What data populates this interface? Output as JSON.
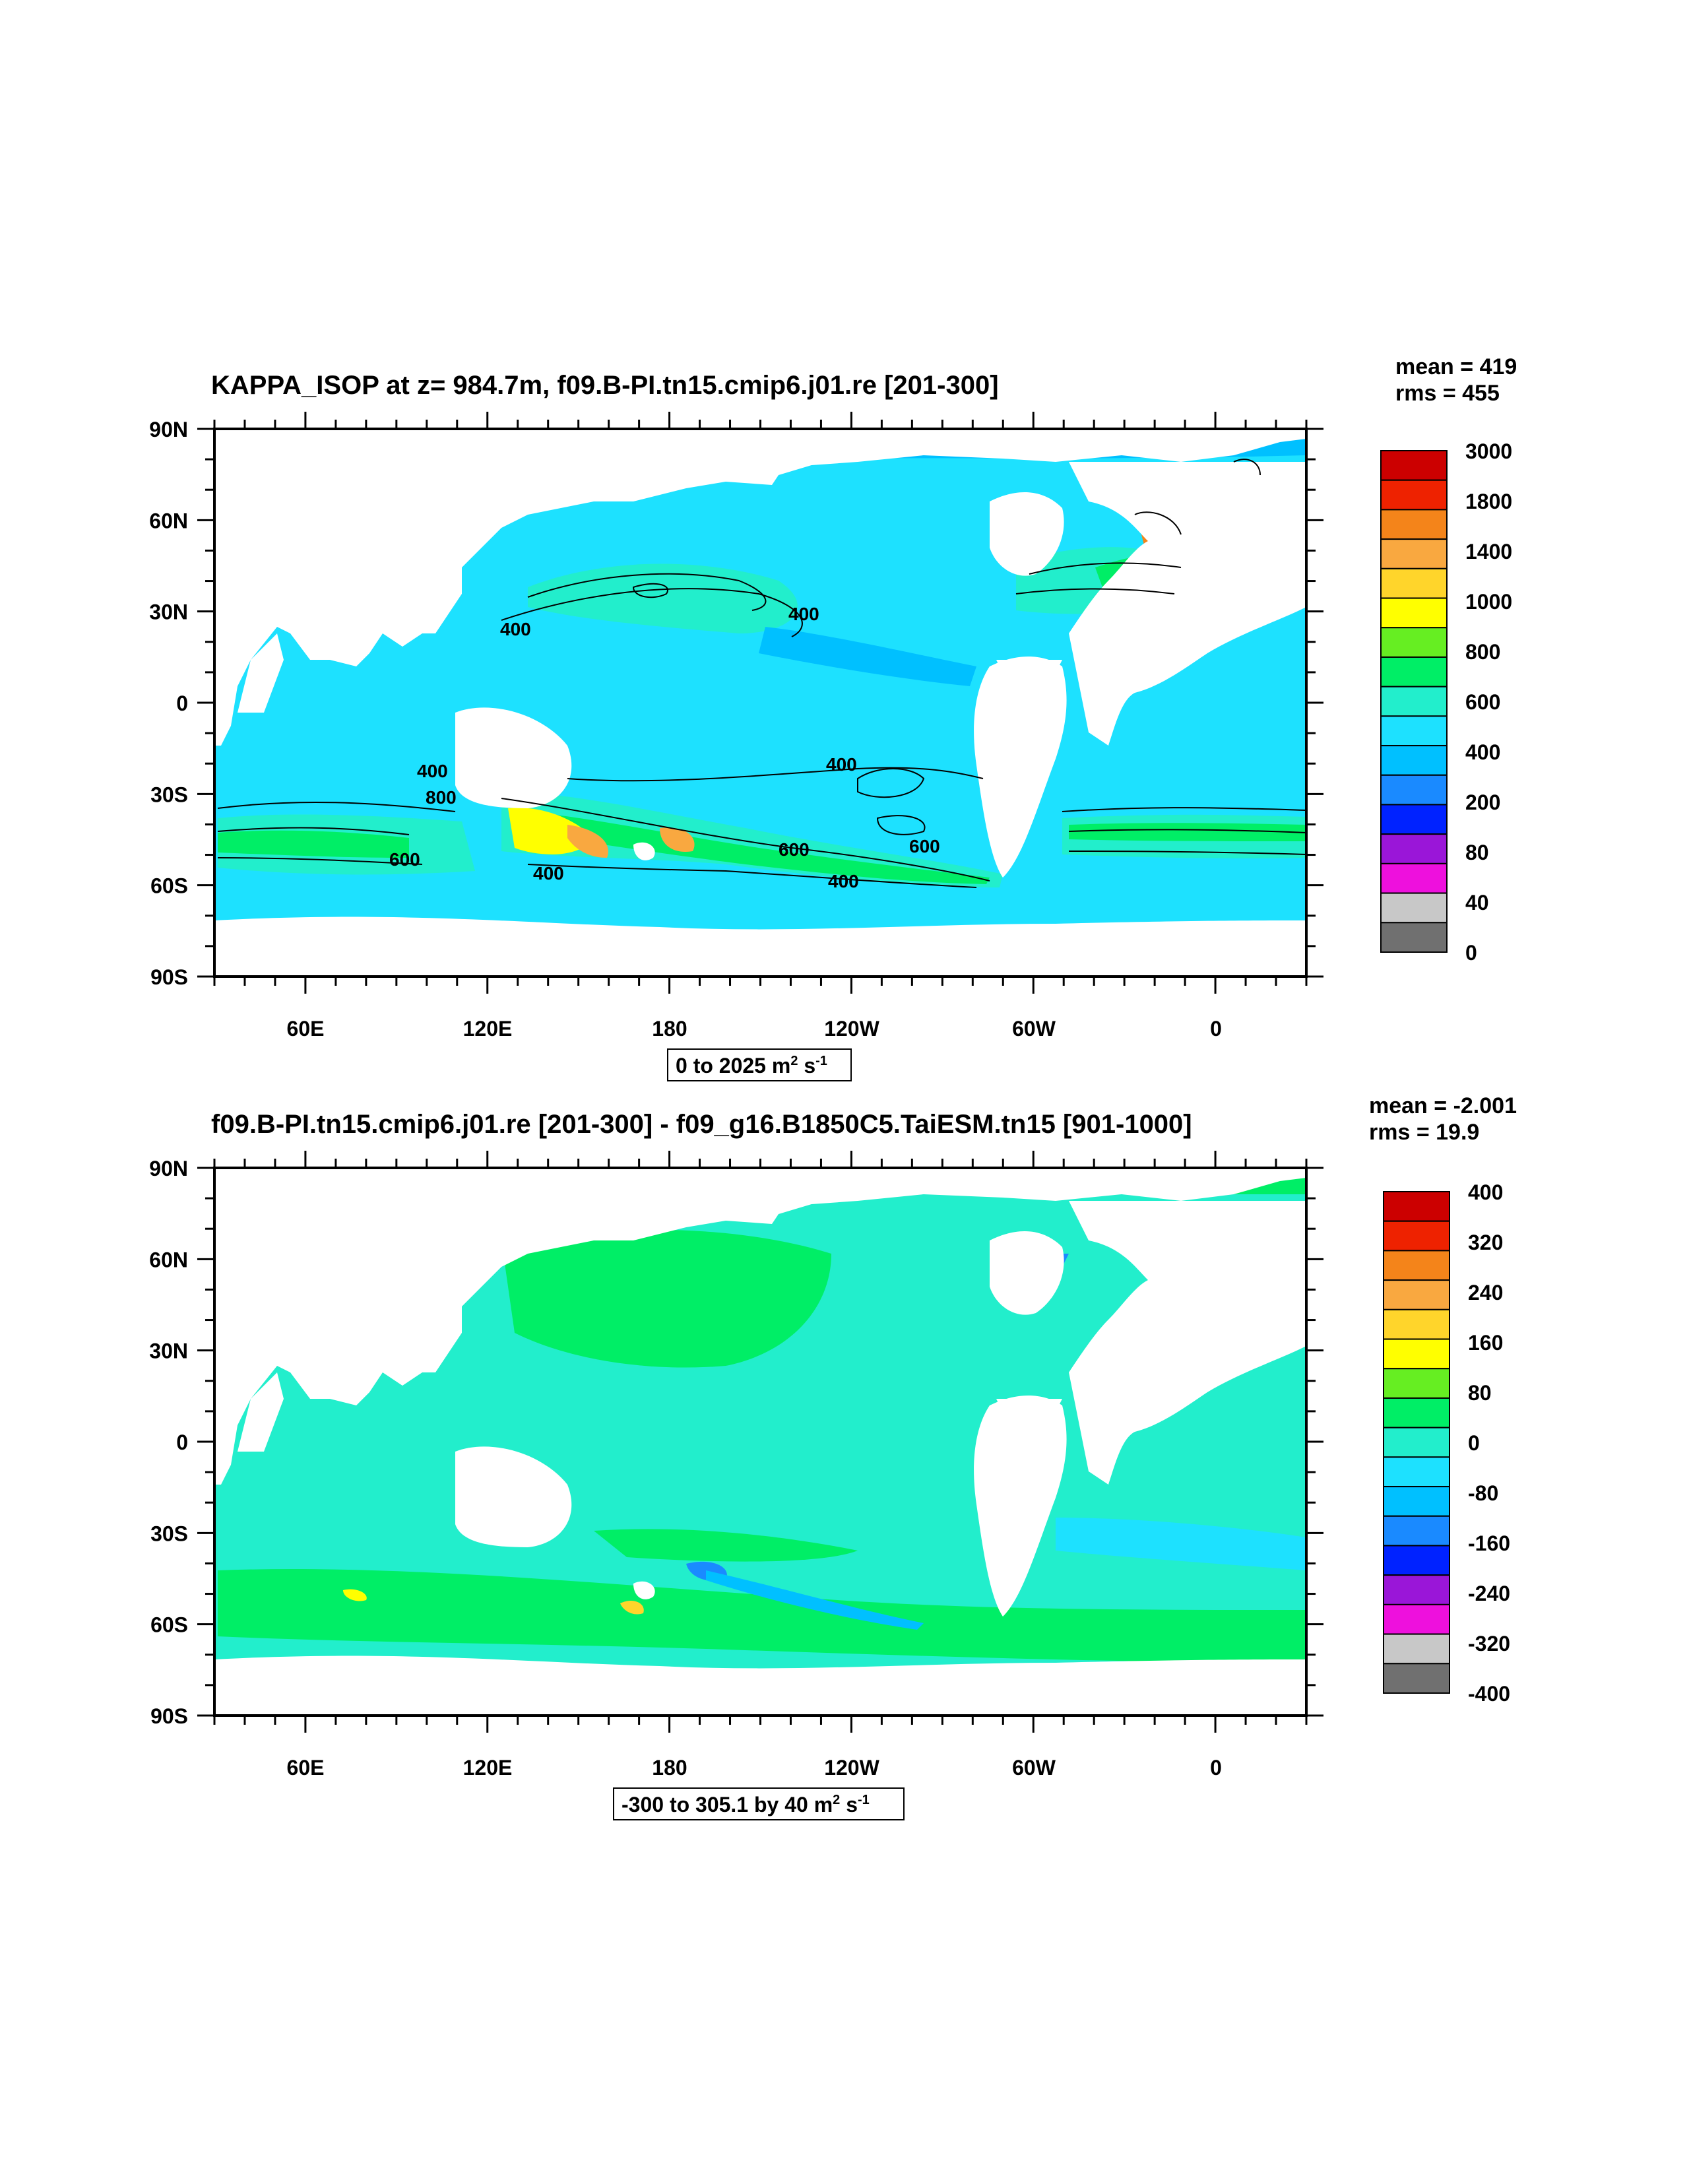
{
  "chart_data": [
    {
      "type": "heatmap",
      "title": "KAPPA_ISOP at z= 984.7m, f09.B-PI.tn15.cmip6.j01.re [201-300]",
      "stats": {
        "mean": "mean = 419",
        "rms": "rms = 455"
      },
      "x_ticks": [
        "60E",
        "120E",
        "180",
        "120W",
        "60W",
        "0"
      ],
      "y_ticks": [
        "90N",
        "60N",
        "30N",
        "0",
        "30S",
        "60S",
        "90S"
      ],
      "colorbar": {
        "levels": [
          "3000",
          "1800",
          "1400",
          "1000",
          "800",
          "600",
          "400",
          "200",
          "80",
          "40",
          "0"
        ],
        "colors": [
          "#cc0000",
          "#ee2200",
          "#f4841a",
          "#f9a840",
          "#ffd52b",
          "#ffff00",
          "#66ee22",
          "#00ee66",
          "#22eecc",
          "#1de1ff",
          "#00c0ff",
          "#1a8aff",
          "#0022ff",
          "#9a16d8",
          "#ee10dd",
          "#c8c8c8",
          "#707070"
        ]
      },
      "range_info": {
        "text": "0 to 2025 m",
        "sup1": "2",
        "mid": " s",
        "sup2": "-1"
      },
      "contour_labels": [
        "400",
        "400",
        "400",
        "400",
        "600",
        "600",
        "400",
        "400",
        "600",
        "800"
      ],
      "ocean_color": "#1de1ff"
    },
    {
      "type": "heatmap",
      "title": "f09.B-PI.tn15.cmip6.j01.re [201-300] - f09_g16.B1850C5.TaiESM.tn15 [901-1000]",
      "stats": {
        "mean": "mean = -2.001",
        "rms": "rms = 19.9"
      },
      "x_ticks": [
        "60E",
        "120E",
        "180",
        "120W",
        "60W",
        "0"
      ],
      "y_ticks": [
        "90N",
        "60N",
        "30N",
        "0",
        "30S",
        "60S",
        "90S"
      ],
      "colorbar": {
        "levels": [
          "400",
          "320",
          "240",
          "160",
          "80",
          "0",
          "-80",
          "-160",
          "-240",
          "-320",
          "-400"
        ],
        "colors": [
          "#cc0000",
          "#ee2200",
          "#f4841a",
          "#f9a840",
          "#ffd52b",
          "#ffff00",
          "#66ee22",
          "#00ee66",
          "#22eecc",
          "#1de1ff",
          "#00c0ff",
          "#1a8aff",
          "#0022ff",
          "#9a16d8",
          "#ee10dd",
          "#c8c8c8",
          "#707070"
        ]
      },
      "range_info": {
        "text": "-300 to 305.1 by 40 m",
        "sup1": "2",
        "mid": " s",
        "sup2": "-1"
      },
      "ocean_color": "#22eecc"
    }
  ]
}
